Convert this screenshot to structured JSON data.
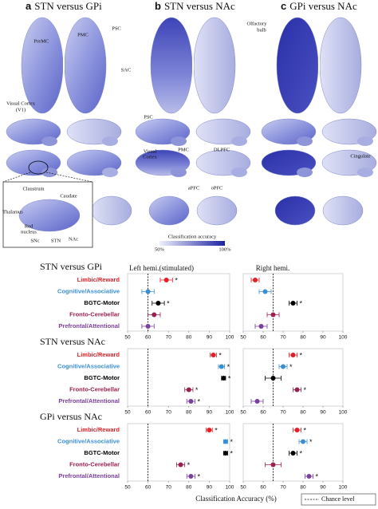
{
  "brain_figure": {
    "panels": [
      {
        "letter": "a",
        "title": "STN versus GPi",
        "annotations": [
          "PreMC",
          "PMC",
          "PSC",
          "SAC",
          "Visual Cortex",
          "(V1)"
        ]
      },
      {
        "letter": "b",
        "title": "STN versus NAc",
        "annotations": [
          "PSC",
          "Visual",
          "Cortex",
          "PMC",
          "DLPFC",
          "aPFC",
          "oPFC"
        ]
      },
      {
        "letter": "c",
        "title": "GPi versus NAc",
        "annotations": [
          "Olfactory",
          "bulb",
          "Cingulate"
        ]
      }
    ],
    "inset_labels": [
      "Claustrum",
      "Caudate",
      "Thalamus",
      "Red",
      "nucleus",
      "SNc",
      "STN",
      "NAc"
    ],
    "colorbar": {
      "label": "Classification accuracy",
      "range": [
        50,
        100
      ],
      "ticks": [
        {
          "value": 50,
          "label": "50%"
        },
        {
          "value": 100,
          "label": "100%"
        }
      ]
    }
  },
  "chart_data": [
    {
      "type": "dot",
      "title": "STN versus GPi",
      "categories": [
        "Limbic/Reward",
        "Cognitive/Associative",
        "BGTC-Motor",
        "Fronto-Cerebellar",
        "Prefrontal/Attentional"
      ],
      "category_colors": [
        "#e41f26",
        "#3a8fd4",
        "#000000",
        "#9b1f4f",
        "#7b3f9e"
      ],
      "significance_label": "*",
      "series": [
        {
          "name": "Left hemi.(stimulated)",
          "chance_level": 60,
          "values": [
            69,
            60,
            65,
            63,
            60
          ],
          "errors": [
            3,
            3,
            3,
            3,
            3
          ],
          "significant": [
            true,
            false,
            true,
            false,
            false
          ]
        },
        {
          "name": "Right hemi.",
          "chance_level": 65,
          "values": [
            56,
            61,
            75,
            65,
            59
          ],
          "errors": [
            2,
            3,
            2,
            3,
            3
          ],
          "significant": [
            false,
            false,
            true,
            false,
            false
          ]
        }
      ],
      "xlim": [
        50,
        100
      ],
      "xticks": [
        50,
        60,
        70,
        80,
        90,
        100
      ]
    },
    {
      "type": "dot",
      "title": "STN versus NAc",
      "categories": [
        "Limbic/Reward",
        "Cognitive/Associative",
        "BGTC-Motor",
        "Fronto-Cerebellar",
        "Prefrontal/Attentional"
      ],
      "category_colors": [
        "#e41f26",
        "#3a8fd4",
        "#000000",
        "#9b1f4f",
        "#7b3f9e"
      ],
      "significance_label": "*",
      "series": [
        {
          "chance_level": 60,
          "values": [
            92,
            96,
            97,
            80,
            81
          ],
          "errors": [
            1.5,
            1.5,
            1,
            2,
            2
          ],
          "significant": [
            true,
            true,
            true,
            true,
            true
          ]
        },
        {
          "chance_level": 65,
          "values": [
            75,
            70,
            65,
            77,
            57
          ],
          "errors": [
            2,
            2,
            4,
            2,
            3
          ],
          "significant": [
            true,
            true,
            false,
            true,
            false
          ]
        }
      ],
      "xlim": [
        50,
        100
      ],
      "xticks": [
        50,
        60,
        70,
        80,
        90,
        100
      ]
    },
    {
      "type": "dot",
      "title": "GPi versus NAc",
      "categories": [
        "Limbic/Reward",
        "Cognitive/Associative",
        "BGTC-Motor",
        "Fronto-Cerebellar",
        "Prefrontal/Attentional"
      ],
      "category_colors": [
        "#e41f26",
        "#3a8fd4",
        "#000000",
        "#9b1f4f",
        "#7b3f9e"
      ],
      "significance_label": "*",
      "series": [
        {
          "chance_level": 60,
          "values": [
            90,
            98,
            98,
            76,
            81
          ],
          "errors": [
            1.5,
            1,
            1,
            2,
            2
          ],
          "significant": [
            true,
            true,
            true,
            true,
            true
          ]
        },
        {
          "chance_level": 65,
          "values": [
            77,
            80,
            75,
            65,
            83
          ],
          "errors": [
            2,
            2,
            2,
            4,
            2
          ],
          "significant": [
            true,
            true,
            true,
            false,
            true
          ]
        }
      ],
      "xlim": [
        50,
        100
      ],
      "xticks": [
        50,
        60,
        70,
        80,
        90,
        100
      ],
      "xlabel": "Classification Accuracy (%)",
      "legend": {
        "label": "Chance level"
      }
    }
  ]
}
